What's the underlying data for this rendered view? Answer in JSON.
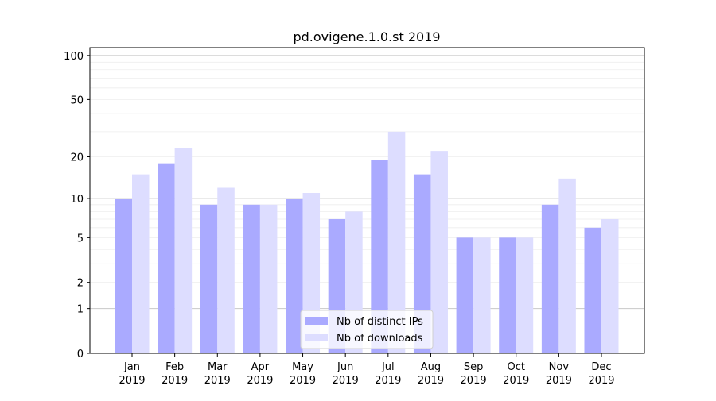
{
  "chart_data": {
    "type": "bar",
    "title": "pd.ovigene.1.0.st 2019",
    "xlabel": "",
    "ylabel": "",
    "yscale": "log(1+y)",
    "ylim": [
      0,
      113
    ],
    "yticks": [
      0,
      1,
      2,
      5,
      10,
      20,
      50,
      100
    ],
    "grid": true,
    "legend_position": "bottom-center",
    "categories": [
      "Jan\n2019",
      "Feb\n2019",
      "Mar\n2019",
      "Apr\n2019",
      "May\n2019",
      "Jun\n2019",
      "Jul\n2019",
      "Aug\n2019",
      "Sep\n2019",
      "Oct\n2019",
      "Nov\n2019",
      "Dec\n2019"
    ],
    "series": [
      {
        "name": "Nb of distinct IPs",
        "color": "#aaaaff",
        "values": [
          10,
          18,
          9,
          9,
          10,
          7,
          19,
          15,
          5,
          5,
          9,
          6
        ]
      },
      {
        "name": "Nb of downloads",
        "color": "#ddddff",
        "values": [
          15,
          23,
          12,
          9,
          11,
          8,
          30,
          22,
          5,
          5,
          14,
          7
        ]
      }
    ]
  }
}
